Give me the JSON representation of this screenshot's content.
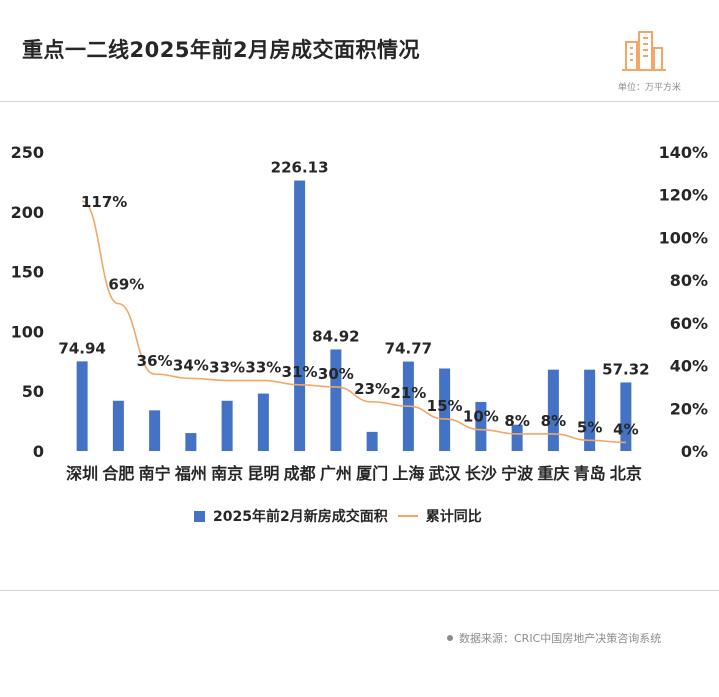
{
  "header": {
    "title": "重点一二线2025年前2月房成交面积情况",
    "unit": "单位：万平方米"
  },
  "source": "数据来源：CRIC中国房地产决策咨询系统",
  "colors": {
    "bar": "#4472c4",
    "line": "#f2a766",
    "text": "#262626"
  },
  "chart_data": {
    "type": "bar",
    "categories": [
      "深圳",
      "合肥",
      "南宁",
      "福州",
      "南京",
      "昆明",
      "成都",
      "广州",
      "厦门",
      "上海",
      "武汉",
      "长沙",
      "宁波",
      "重庆",
      "青岛",
      "北京"
    ],
    "series": [
      {
        "name": "2025年前2月新房成交面积",
        "type": "bar",
        "axis": "left",
        "values": [
          74.94,
          42,
          34,
          15,
          42,
          48,
          226.13,
          84.92,
          16,
          74.77,
          69,
          41,
          22,
          68,
          68,
          57.32
        ],
        "labels": [
          "74.94",
          "",
          "",
          "",
          "",
          "",
          "226.13",
          "84.92",
          "",
          "74.77",
          "",
          "",
          "",
          "",
          "",
          "57.32"
        ]
      },
      {
        "name": "累计同比",
        "type": "line",
        "axis": "right",
        "values": [
          117,
          69,
          36,
          34,
          33,
          33,
          31,
          30,
          23,
          21,
          15,
          10,
          8,
          8,
          5,
          4
        ],
        "labels": [
          "117%",
          "69%",
          "36%",
          "34%",
          "33%",
          "33%",
          "31%",
          "30%",
          "23%",
          "21%",
          "15%",
          "10%",
          "8%",
          "8%",
          "5%",
          "4%"
        ]
      }
    ],
    "y_left": {
      "min": 0,
      "max": 250,
      "ticks": [
        "0",
        "50",
        "100",
        "150",
        "200",
        "250"
      ]
    },
    "y_right": {
      "min": 0,
      "max": 140,
      "ticks": [
        "0%",
        "20%",
        "40%",
        "60%",
        "80%",
        "100%",
        "120%",
        "140%"
      ]
    },
    "grid": false,
    "legend": "bottom"
  }
}
